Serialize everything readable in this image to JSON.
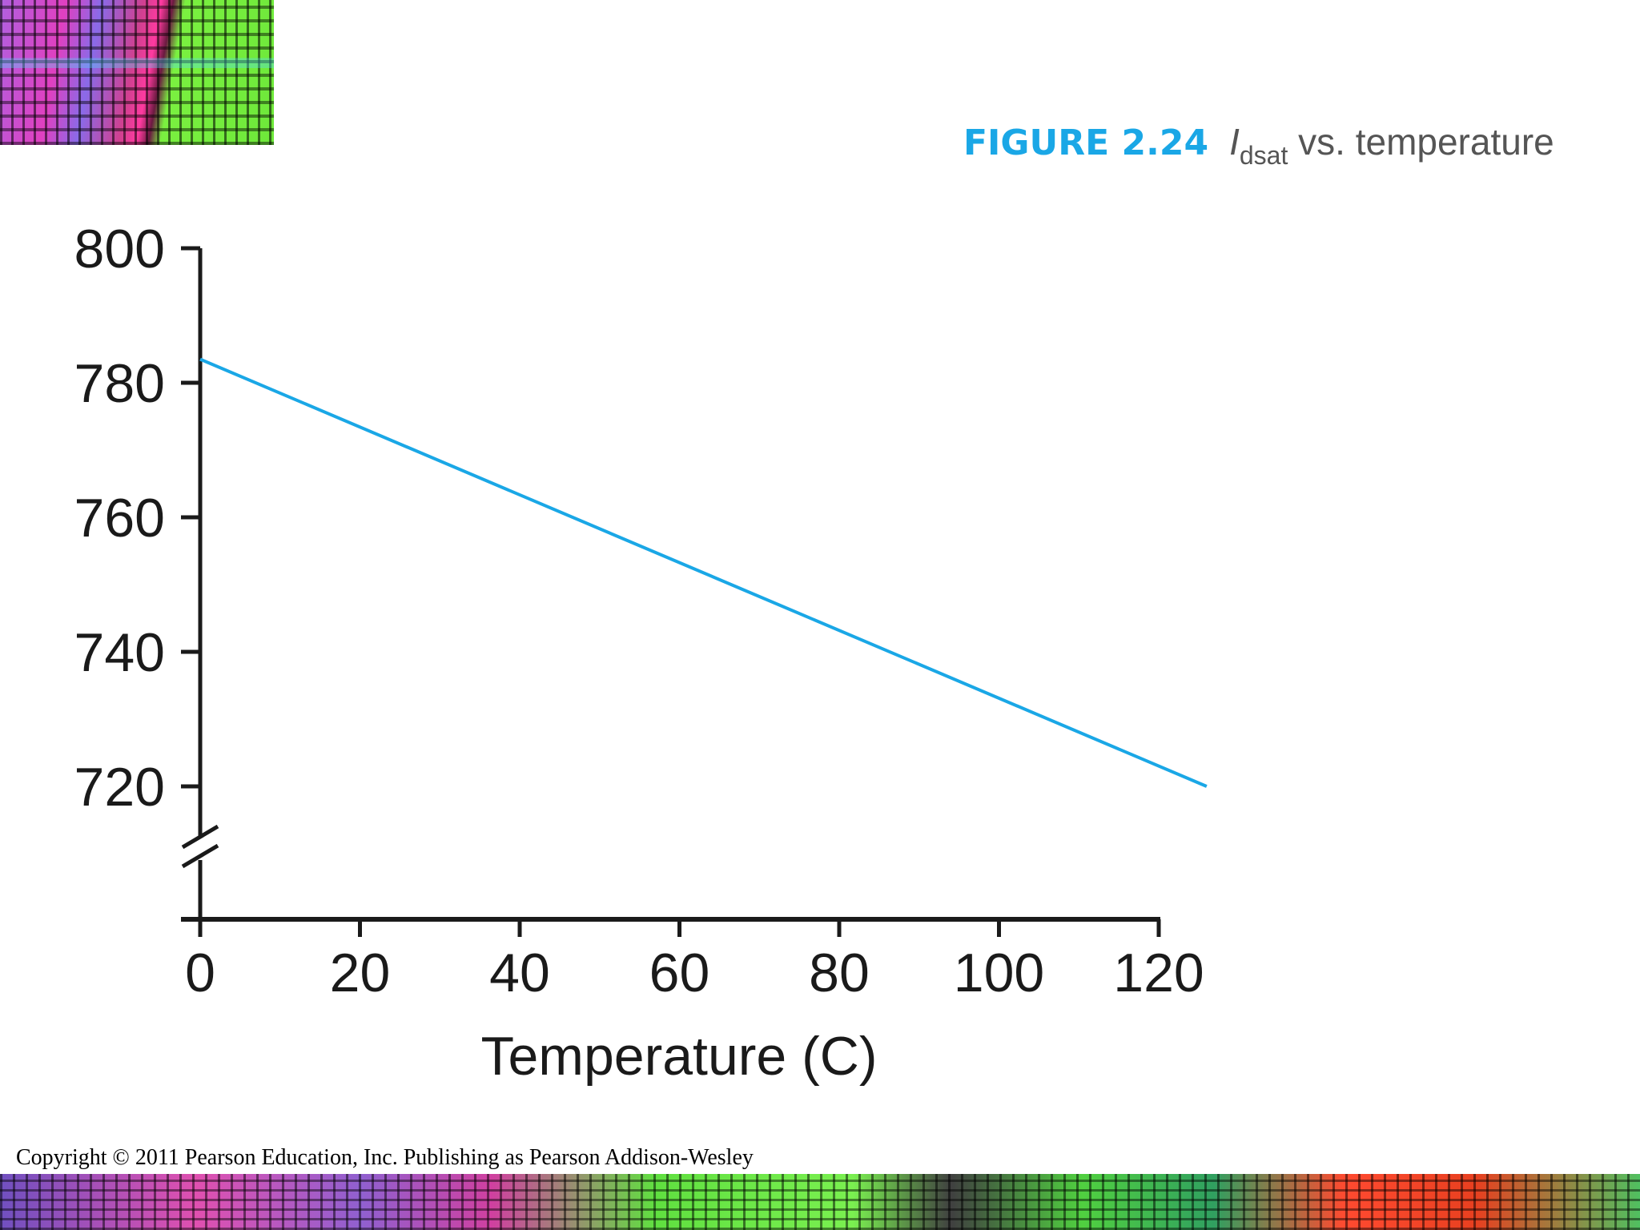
{
  "caption": {
    "figure_label": "FIGURE 2.24",
    "symbol": "I",
    "symbol_subscript": "dsat",
    "text": "vs. temperature"
  },
  "chart_data": {
    "type": "line",
    "title": "FIGURE 2.24 Idsat vs. temperature",
    "xlabel": "Temperature (C)",
    "ylabel": "",
    "xlim": [
      0,
      120
    ],
    "ylim": [
      720,
      800
    ],
    "y_axis_break": true,
    "grid": false,
    "x_ticks": [
      0,
      20,
      40,
      60,
      80,
      100,
      120
    ],
    "x_tick_labels": [
      "0",
      "20",
      "40",
      "60",
      "80",
      "100",
      "120"
    ],
    "y_ticks": [
      720,
      740,
      760,
      780,
      800
    ],
    "y_tick_labels": [
      "720",
      "740",
      "760",
      "780",
      "800"
    ],
    "series": [
      {
        "name": "Idsat",
        "color": "#1aa7e6",
        "x": [
          0,
          126
        ],
        "y": [
          783.5,
          720
        ]
      }
    ]
  },
  "copyright": "Copyright © 2011 Pearson Education, Inc. Publishing as Pearson Addison-Wesley",
  "colors": {
    "accent": "#1aa7e6",
    "axis": "#1a1a1a"
  }
}
